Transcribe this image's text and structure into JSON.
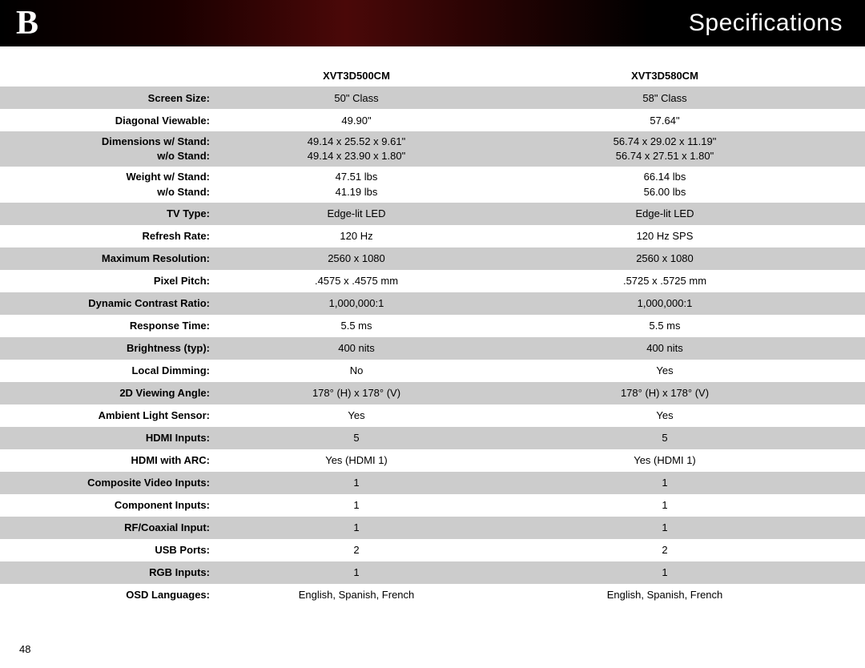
{
  "header": {
    "letter": "B",
    "title": "Specifications"
  },
  "page_number": "48",
  "columns": {
    "model_a": "XVT3D500CM",
    "model_b": "XVT3D580CM"
  },
  "rows": [
    {
      "label": "Screen Size:",
      "a": "50\" Class",
      "b": "58\" Class",
      "shaded": true
    },
    {
      "label": "Diagonal Viewable:",
      "a": "49.90\"",
      "b": "57.64\"",
      "shaded": false
    },
    {
      "label": "Dimensions w/ Stand:",
      "label2": "w/o Stand:",
      "a": "49.14 x 25.52 x 9.61\"",
      "a2": "49.14 x 23.90 x 1.80\"",
      "b": "56.74 x 29.02 x 11.19\"",
      "b2": "56.74 x 27.51 x 1.80\"",
      "shaded": true,
      "multi": true
    },
    {
      "label": "Weight w/ Stand:",
      "label2": "w/o Stand:",
      "a": "47.51 lbs",
      "a2": "41.19 lbs",
      "b": "66.14 lbs",
      "b2": "56.00 lbs",
      "shaded": false,
      "multi": true
    },
    {
      "label": "TV Type:",
      "a": "Edge-lit LED",
      "b": "Edge-lit LED",
      "shaded": true
    },
    {
      "label": "Refresh Rate:",
      "a": "120 Hz",
      "b": "120 Hz SPS",
      "shaded": false
    },
    {
      "label": "Maximum Resolution:",
      "a": "2560 x 1080",
      "b": "2560 x 1080",
      "shaded": true
    },
    {
      "label": "Pixel Pitch:",
      "a": ".4575 x .4575 mm",
      "b": ".5725 x .5725 mm",
      "shaded": false
    },
    {
      "label": "Dynamic Contrast Ratio:",
      "a": "1,000,000:1",
      "b": "1,000,000:1",
      "shaded": true
    },
    {
      "label": "Response Time:",
      "a": "5.5 ms",
      "b": "5.5 ms",
      "shaded": false
    },
    {
      "label": "Brightness (typ):",
      "a": "400 nits",
      "b": "400 nits",
      "shaded": true
    },
    {
      "label": "Local Dimming:",
      "a": "No",
      "b": "Yes",
      "shaded": false
    },
    {
      "label": "2D Viewing Angle:",
      "a": "178° (H) x 178° (V)",
      "b": "178° (H) x 178° (V)",
      "shaded": true
    },
    {
      "label": "Ambient Light Sensor:",
      "a": "Yes",
      "b": "Yes",
      "shaded": false
    },
    {
      "label": "HDMI Inputs:",
      "a": "5",
      "b": "5",
      "shaded": true
    },
    {
      "label": "HDMI with ARC:",
      "a": "Yes (HDMI 1)",
      "b": "Yes (HDMI 1)",
      "shaded": false
    },
    {
      "label": "Composite Video Inputs:",
      "a": "1",
      "b": "1",
      "shaded": true
    },
    {
      "label": "Component Inputs:",
      "a": "1",
      "b": "1",
      "shaded": false
    },
    {
      "label": "RF/Coaxial Input:",
      "a": "1",
      "b": "1",
      "shaded": true
    },
    {
      "label": "USB Ports:",
      "a": "2",
      "b": "2",
      "shaded": false
    },
    {
      "label": "RGB Inputs:",
      "a": "1",
      "b": "1",
      "shaded": true
    },
    {
      "label": "OSD Languages:",
      "a": "English, Spanish, French",
      "b": "English, Spanish, French",
      "shaded": false
    }
  ],
  "colors": {
    "shaded_row": "#cccccc",
    "header_bg_start": "#000000",
    "header_bg_accent": "#4a0808",
    "text": "#000000",
    "header_text": "#ffffff"
  }
}
